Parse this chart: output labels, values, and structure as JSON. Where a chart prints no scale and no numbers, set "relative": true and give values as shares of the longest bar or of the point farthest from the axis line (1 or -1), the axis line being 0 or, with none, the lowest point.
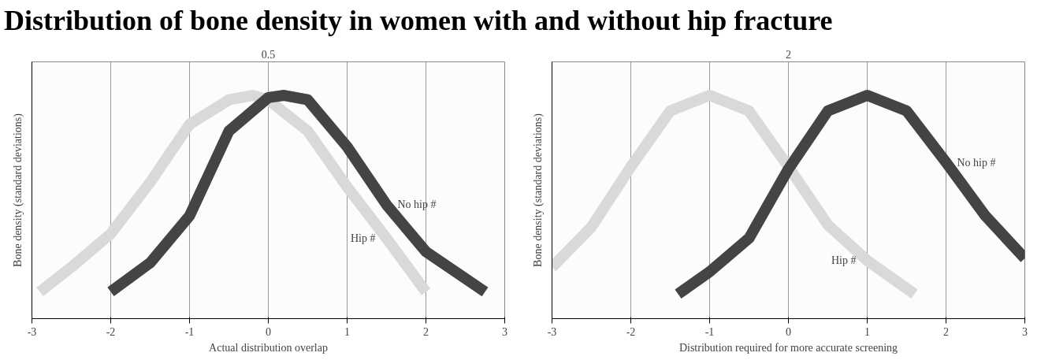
{
  "chart_data": [
    {
      "type": "line",
      "title": "Distribution of bone density in women with and without hip fracture",
      "xlabel": "Actual distribution overlap",
      "ylabel": "Bone density (standard deviations)",
      "relative": true,
      "xlim": [
        -3,
        3
      ],
      "xticks": [
        -3,
        -2,
        -1,
        0,
        1,
        2,
        3
      ],
      "grid": "x",
      "annotations": [
        "0.5"
      ],
      "series": [
        {
          "name": "Hip #",
          "color": "#d9d9d9",
          "x": [
            -2.9,
            -2.5,
            -2,
            -1.5,
            -1,
            -0.5,
            -0.2,
            0,
            0.5,
            1,
            1.5,
            2
          ],
          "values": [
            0.12,
            0.23,
            0.38,
            0.61,
            0.87,
            0.98,
            1.0,
            0.98,
            0.84,
            0.59,
            0.36,
            0.12
          ]
        },
        {
          "name": "No hip #",
          "color": "#444444",
          "x": [
            -2,
            -1.5,
            -1,
            -0.5,
            0,
            0.2,
            0.5,
            1,
            1.5,
            2,
            2.5,
            2.75
          ],
          "values": [
            0.12,
            0.25,
            0.46,
            0.84,
            0.99,
            1.0,
            0.98,
            0.77,
            0.51,
            0.3,
            0.18,
            0.12
          ]
        }
      ]
    },
    {
      "type": "line",
      "xlabel": "Distribution required for more accurate screening",
      "ylabel": "Bone density (standard deviations)",
      "relative": true,
      "xlim": [
        -3,
        3
      ],
      "xticks": [
        -3,
        -2,
        -1,
        0,
        1,
        2,
        3
      ],
      "grid": "x",
      "annotations": [
        "2"
      ],
      "series": [
        {
          "name": "Hip #",
          "color": "#d9d9d9",
          "x": [
            -3,
            -2.5,
            -2,
            -1.5,
            -1,
            -0.5,
            0,
            0.5,
            1,
            1.6
          ],
          "values": [
            0.23,
            0.41,
            0.68,
            0.93,
            1.0,
            0.93,
            0.68,
            0.42,
            0.26,
            0.11
          ]
        },
        {
          "name": "No hip #",
          "color": "#444444",
          "x": [
            -1.4,
            -1,
            -0.5,
            0,
            0.5,
            1,
            1.5,
            2,
            2.5,
            3
          ],
          "values": [
            0.11,
            0.21,
            0.36,
            0.67,
            0.93,
            1.0,
            0.93,
            0.7,
            0.46,
            0.27
          ]
        }
      ]
    }
  ]
}
